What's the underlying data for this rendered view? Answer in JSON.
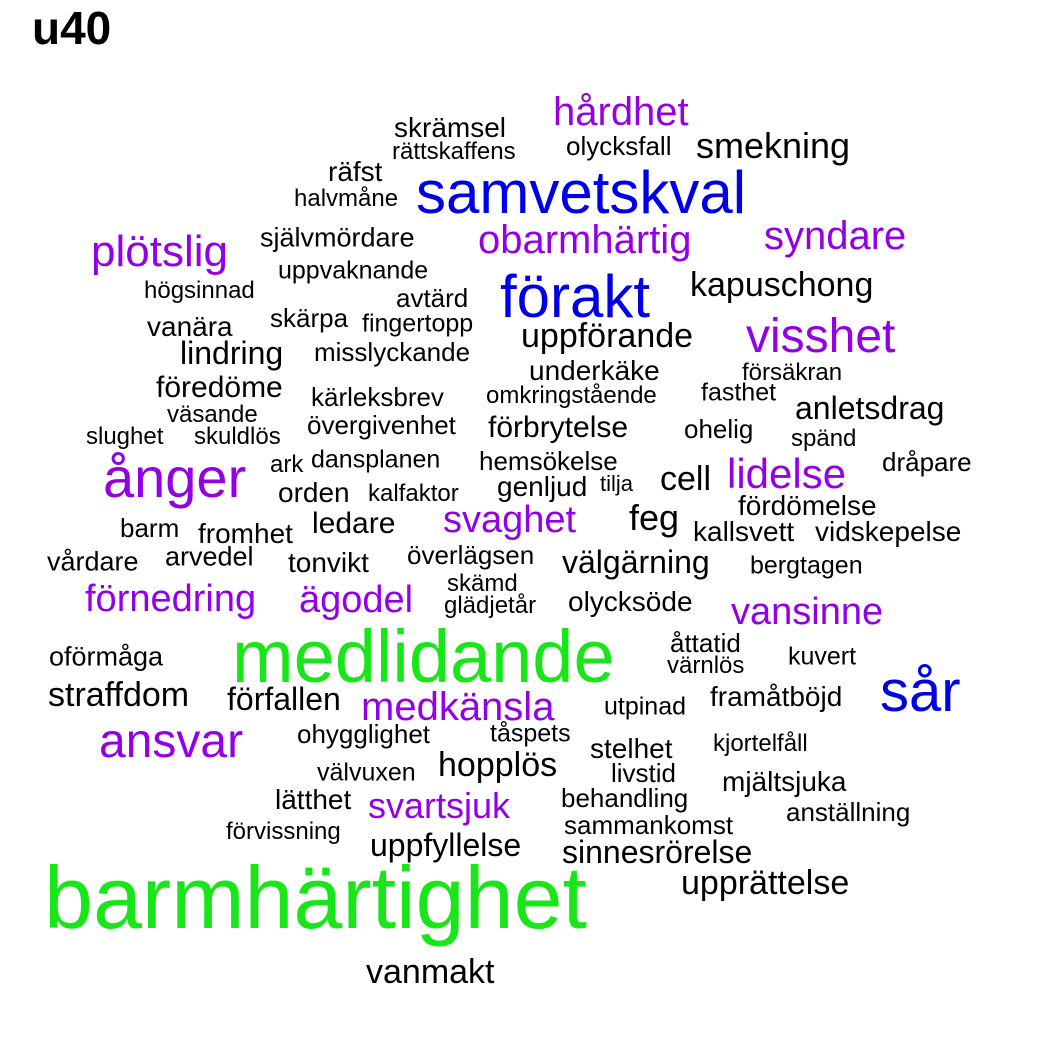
{
  "title": "u40",
  "colors": {
    "black": "#000000",
    "purple": "#9400e6",
    "blue": "#0000e6",
    "green": "#19e619"
  },
  "words": [
    {
      "text": "barmhärtighet",
      "color": "green"
    },
    {
      "text": "medlidande",
      "color": "green"
    },
    {
      "text": "samvetskval",
      "color": "blue"
    },
    {
      "text": "förakt",
      "color": "blue"
    },
    {
      "text": "sår",
      "color": "blue"
    },
    {
      "text": "ånger",
      "color": "purple"
    },
    {
      "text": "ansvar",
      "color": "purple"
    },
    {
      "text": "visshet",
      "color": "purple"
    },
    {
      "text": "plötslig",
      "color": "purple"
    },
    {
      "text": "hårdhet",
      "color": "purple"
    },
    {
      "text": "obarmhärtig",
      "color": "purple"
    },
    {
      "text": "syndare",
      "color": "purple"
    },
    {
      "text": "lidelse",
      "color": "purple"
    },
    {
      "text": "svaghet",
      "color": "purple"
    },
    {
      "text": "förnedring",
      "color": "purple"
    },
    {
      "text": "ägodel",
      "color": "purple"
    },
    {
      "text": "vansinne",
      "color": "purple"
    },
    {
      "text": "medkänsla",
      "color": "purple"
    },
    {
      "text": "svartsjuk",
      "color": "purple"
    },
    {
      "text": "skrämsel",
      "color": "black"
    },
    {
      "text": "rättskaffens",
      "color": "black"
    },
    {
      "text": "olycksfall",
      "color": "black"
    },
    {
      "text": "smekning",
      "color": "black"
    },
    {
      "text": "räfst",
      "color": "black"
    },
    {
      "text": "halvmåne",
      "color": "black"
    },
    {
      "text": "självmördare",
      "color": "black"
    },
    {
      "text": "uppvaknande",
      "color": "black"
    },
    {
      "text": "högsinnad",
      "color": "black"
    },
    {
      "text": "avtärd",
      "color": "black"
    },
    {
      "text": "kapuschong",
      "color": "black"
    },
    {
      "text": "vanära",
      "color": "black"
    },
    {
      "text": "skärpa",
      "color": "black"
    },
    {
      "text": "fingertopp",
      "color": "black"
    },
    {
      "text": "uppförande",
      "color": "black"
    },
    {
      "text": "lindring",
      "color": "black"
    },
    {
      "text": "misslyckande",
      "color": "black"
    },
    {
      "text": "underkäke",
      "color": "black"
    },
    {
      "text": "försäkran",
      "color": "black"
    },
    {
      "text": "föredöme",
      "color": "black"
    },
    {
      "text": "kärleksbrev",
      "color": "black"
    },
    {
      "text": "omkringstående",
      "color": "black"
    },
    {
      "text": "fasthet",
      "color": "black"
    },
    {
      "text": "anletsdrag",
      "color": "black"
    },
    {
      "text": "väsande",
      "color": "black"
    },
    {
      "text": "övergivenhet",
      "color": "black"
    },
    {
      "text": "förbrytelse",
      "color": "black"
    },
    {
      "text": "ohelig",
      "color": "black"
    },
    {
      "text": "slughet",
      "color": "black"
    },
    {
      "text": "skuldlös",
      "color": "black"
    },
    {
      "text": "spänd",
      "color": "black"
    },
    {
      "text": "ark",
      "color": "black"
    },
    {
      "text": "dansplanen",
      "color": "black"
    },
    {
      "text": "hemsökelse",
      "color": "black"
    },
    {
      "text": "dråpare",
      "color": "black"
    },
    {
      "text": "cell",
      "color": "black"
    },
    {
      "text": "orden",
      "color": "black"
    },
    {
      "text": "kalfaktor",
      "color": "black"
    },
    {
      "text": "genljud",
      "color": "black"
    },
    {
      "text": "tilja",
      "color": "black"
    },
    {
      "text": "fördömelse",
      "color": "black"
    },
    {
      "text": "feg",
      "color": "black"
    },
    {
      "text": "barm",
      "color": "black"
    },
    {
      "text": "fromhet",
      "color": "black"
    },
    {
      "text": "ledare",
      "color": "black"
    },
    {
      "text": "kallsvett",
      "color": "black"
    },
    {
      "text": "vidskepelse",
      "color": "black"
    },
    {
      "text": "vårdare",
      "color": "black"
    },
    {
      "text": "arvedel",
      "color": "black"
    },
    {
      "text": "tonvikt",
      "color": "black"
    },
    {
      "text": "överlägsen",
      "color": "black"
    },
    {
      "text": "välgärning",
      "color": "black"
    },
    {
      "text": "bergtagen",
      "color": "black"
    },
    {
      "text": "skämd",
      "color": "black"
    },
    {
      "text": "glädjetår",
      "color": "black"
    },
    {
      "text": "olycksöde",
      "color": "black"
    },
    {
      "text": "åttatid",
      "color": "black"
    },
    {
      "text": "oförmåga",
      "color": "black"
    },
    {
      "text": "värnlös",
      "color": "black"
    },
    {
      "text": "kuvert",
      "color": "black"
    },
    {
      "text": "straffdom",
      "color": "black"
    },
    {
      "text": "förfallen",
      "color": "black"
    },
    {
      "text": "framåtböjd",
      "color": "black"
    },
    {
      "text": "utpinad",
      "color": "black"
    },
    {
      "text": "ohygglighet",
      "color": "black"
    },
    {
      "text": "tåspets",
      "color": "black"
    },
    {
      "text": "stelhet",
      "color": "black"
    },
    {
      "text": "kjortelfåll",
      "color": "black"
    },
    {
      "text": "välvuxen",
      "color": "black"
    },
    {
      "text": "hopplös",
      "color": "black"
    },
    {
      "text": "livstid",
      "color": "black"
    },
    {
      "text": "mjältsjuka",
      "color": "black"
    },
    {
      "text": "lätthet",
      "color": "black"
    },
    {
      "text": "behandling",
      "color": "black"
    },
    {
      "text": "anställning",
      "color": "black"
    },
    {
      "text": "förvissning",
      "color": "black"
    },
    {
      "text": "sammankomst",
      "color": "black"
    },
    {
      "text": "uppfyllelse",
      "color": "black"
    },
    {
      "text": "sinnesrörelse",
      "color": "black"
    },
    {
      "text": "upprättelse",
      "color": "black"
    },
    {
      "text": "vanmakt",
      "color": "black"
    }
  ]
}
